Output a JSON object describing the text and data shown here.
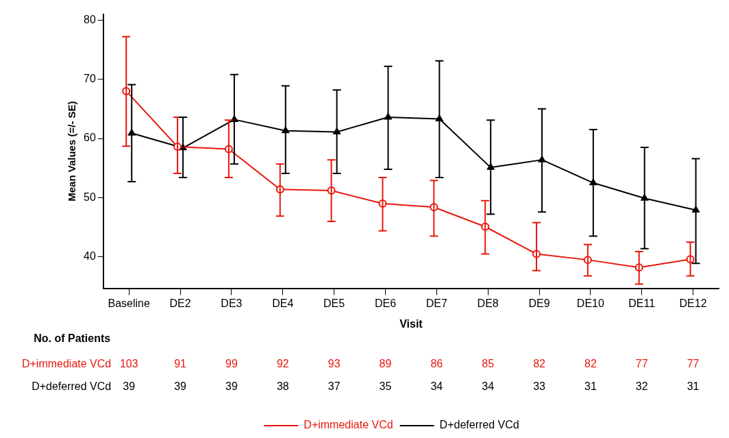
{
  "chart_data": {
    "type": "line",
    "xlabel": "Visit",
    "ylabel": "Mean Values (=/- SE)",
    "categories": [
      "Baseline",
      "DE2",
      "DE3",
      "DE4",
      "DE5",
      "DE6",
      "DE7",
      "DE8",
      "DE9",
      "DE10",
      "DE11",
      "DE12"
    ],
    "series": [
      {
        "name": "D+immediate VCd",
        "color": "#e8170c",
        "marker": "circle",
        "values": [
          68.0,
          58.6,
          58.2,
          51.4,
          51.2,
          49.0,
          48.4,
          45.1,
          40.5,
          39.5,
          38.2,
          39.6
        ],
        "errors": [
          [
            58.7,
            77.2
          ],
          [
            54.1,
            63.6
          ],
          [
            53.4,
            63.1
          ],
          [
            46.9,
            55.7
          ],
          [
            46.0,
            56.4
          ],
          [
            44.4,
            53.4
          ],
          [
            43.5,
            52.9
          ],
          [
            40.5,
            49.5
          ],
          [
            37.7,
            45.8
          ],
          [
            36.8,
            42.1
          ],
          [
            35.4,
            40.9
          ],
          [
            36.8,
            42.5
          ]
        ]
      },
      {
        "name": "D+deferred VCd",
        "color": "#000000",
        "marker": "triangle",
        "values": [
          60.9,
          58.4,
          63.2,
          61.3,
          61.1,
          63.6,
          63.3,
          55.1,
          56.4,
          52.5,
          49.9,
          47.9
        ],
        "errors": [
          [
            52.7,
            69.1
          ],
          [
            53.4,
            63.6
          ],
          [
            55.7,
            70.8
          ],
          [
            54.1,
            68.9
          ],
          [
            54.1,
            68.2
          ],
          [
            54.8,
            72.2
          ],
          [
            53.4,
            73.1
          ],
          [
            47.2,
            63.1
          ],
          [
            47.6,
            65.0
          ],
          [
            43.5,
            61.5
          ],
          [
            41.4,
            58.5
          ],
          [
            38.9,
            56.6
          ]
        ]
      }
    ],
    "ylim": [
      34.7,
      81
    ],
    "yticks": [
      40,
      50,
      60,
      70,
      80
    ],
    "grid": false,
    "legend": "bottom",
    "line_style": "solid",
    "annotations": [
      "No. of Patients",
      "103",
      "91",
      "99",
      "92",
      "93",
      "89",
      "86",
      "85",
      "82",
      "82",
      "77",
      "77",
      "39",
      "39",
      "39",
      "38",
      "37",
      "35",
      "34",
      "34",
      "33",
      "31",
      "32",
      "31"
    ]
  }
}
